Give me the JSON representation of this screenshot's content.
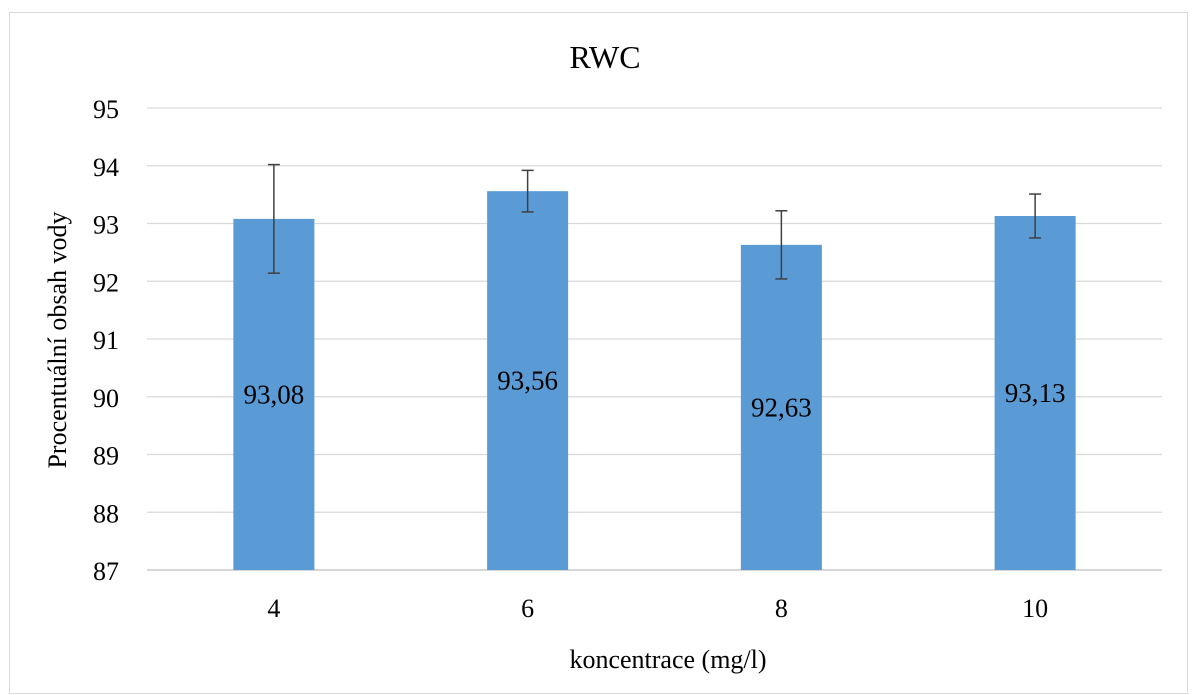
{
  "chart_data": {
    "type": "bar",
    "title": "RWC",
    "xlabel": "koncentrace (mg/l)",
    "ylabel": "Procentuální obsah vody",
    "categories": [
      "4",
      "6",
      "8",
      "10"
    ],
    "values": [
      93.08,
      93.56,
      92.63,
      93.13
    ],
    "value_labels": [
      "93,08",
      "93,56",
      "92,63",
      "93,13"
    ],
    "error_bars": [
      {
        "low": 92.14,
        "high": 94.02
      },
      {
        "low": 93.2,
        "high": 93.92
      },
      {
        "low": 92.04,
        "high": 93.22
      },
      {
        "low": 92.75,
        "high": 93.51
      }
    ],
    "ylim": [
      87,
      95
    ],
    "yticks": [
      "87",
      "88",
      "89",
      "90",
      "91",
      "92",
      "93",
      "94",
      "95"
    ],
    "grid": true,
    "legend": "none",
    "colors": {
      "bar": "#5b9bd5",
      "grid": "#d9d9d9",
      "axis": "#bfbfbf",
      "error_bar": "#404040"
    }
  }
}
